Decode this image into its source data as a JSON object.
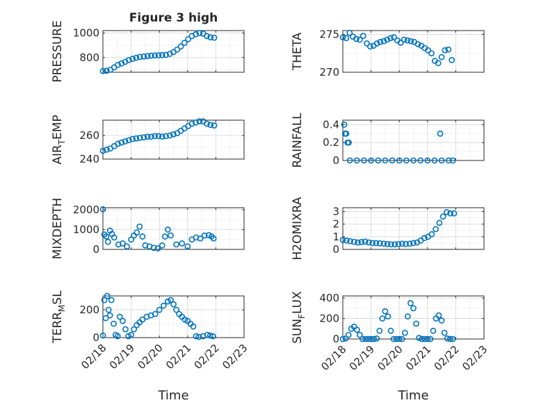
{
  "colors": {
    "marker": "#0072BD",
    "axis": "#262626",
    "grid": "#dcdcdc",
    "background": "#ffffff"
  },
  "chart_data": [
    {
      "id": "pressure",
      "type": "scatter",
      "title": "Figure 3 high",
      "xlabel": "",
      "ylabel": "PRESSURE",
      "xlim": [
        "02/18",
        "02/23"
      ],
      "ylim": [
        680,
        1020
      ],
      "yticks": [
        800,
        1000
      ],
      "ytick_labels": [
        "800",
        "1000"
      ],
      "xtick_labels": [],
      "grid": true,
      "x": [
        0.0,
        0.13,
        0.26,
        0.4,
        0.53,
        0.66,
        0.79,
        0.92,
        1.05,
        1.18,
        1.31,
        1.45,
        1.58,
        1.71,
        1.84,
        1.97,
        2.1,
        2.23,
        2.37,
        2.5,
        2.63,
        2.76,
        2.89,
        3.02,
        3.15,
        3.29,
        3.42,
        3.55,
        3.68,
        3.81,
        3.94
      ],
      "y": [
        690,
        692,
        700,
        720,
        740,
        752,
        765,
        780,
        790,
        798,
        805,
        808,
        812,
        815,
        817,
        818,
        820,
        822,
        830,
        845,
        865,
        890,
        920,
        950,
        975,
        990,
        1000,
        995,
        975,
        965,
        962
      ]
    },
    {
      "id": "theta",
      "type": "scatter",
      "title": "",
      "xlabel": "",
      "ylabel": "THETA",
      "xlim": [
        "02/18",
        "02/23"
      ],
      "ylim": [
        270,
        275.5
      ],
      "yticks": [
        270,
        275
      ],
      "ytick_labels": [
        "270",
        "275"
      ],
      "xtick_labels": [],
      "grid": true,
      "x": [
        0.0,
        0.12,
        0.24,
        0.36,
        0.48,
        0.6,
        0.72,
        0.85,
        0.97,
        1.09,
        1.21,
        1.33,
        1.45,
        1.57,
        1.69,
        1.81,
        1.93,
        2.05,
        2.17,
        2.29,
        2.41,
        2.53,
        2.66,
        2.78,
        2.9,
        3.02,
        3.14,
        3.26,
        3.38,
        3.5,
        3.62,
        3.74,
        3.86
      ],
      "y": [
        274.6,
        274.5,
        275.2,
        274.7,
        274.4,
        274.3,
        274.8,
        273.8,
        273.4,
        273.5,
        273.8,
        274.0,
        274.1,
        274.3,
        274.5,
        274.6,
        274.2,
        273.9,
        274.3,
        274.2,
        274.1,
        274.0,
        273.7,
        273.5,
        273.2,
        272.9,
        272.5,
        271.5,
        271.2,
        272.0,
        272.9,
        273.0,
        271.6
      ]
    },
    {
      "id": "air_temp",
      "type": "scatter",
      "title": "",
      "xlabel": "",
      "ylabel": "AIR_TEMP",
      "xlim": [
        "02/18",
        "02/23"
      ],
      "ylim": [
        240,
        273
      ],
      "yticks": [
        240,
        260
      ],
      "ytick_labels": [
        "240",
        "260"
      ],
      "xtick_labels": [],
      "grid": true,
      "x": [
        0.0,
        0.13,
        0.26,
        0.4,
        0.53,
        0.66,
        0.79,
        0.92,
        1.05,
        1.18,
        1.31,
        1.45,
        1.58,
        1.71,
        1.84,
        1.97,
        2.1,
        2.23,
        2.37,
        2.5,
        2.63,
        2.76,
        2.89,
        3.02,
        3.15,
        3.29,
        3.42,
        3.55,
        3.68,
        3.81,
        3.94
      ],
      "y": [
        247,
        248,
        249,
        251,
        253,
        254,
        255,
        256,
        257,
        257.5,
        258,
        258.5,
        259,
        259,
        259.5,
        259.5,
        259,
        259.5,
        260,
        261,
        262,
        264,
        266,
        268,
        270,
        271,
        272,
        272,
        270,
        269,
        268.5
      ]
    },
    {
      "id": "rainfall",
      "type": "scatter",
      "title": "",
      "xlabel": "",
      "ylabel": "RAINFALL",
      "xlim": [
        "02/18",
        "02/23"
      ],
      "ylim": [
        0,
        0.45
      ],
      "yticks": [
        0,
        0.2,
        0.4
      ],
      "ytick_labels": [
        "0",
        "0.2",
        "0.4"
      ],
      "xtick_labels": [],
      "grid": true,
      "x": [
        0.05,
        0.08,
        0.12,
        0.17,
        0.21,
        3.45,
        0.25,
        0.5,
        0.75,
        1.0,
        1.25,
        1.5,
        1.75,
        2.0,
        2.25,
        2.5,
        2.75,
        3.0,
        3.25,
        3.5,
        3.75,
        3.9
      ],
      "y": [
        0.4,
        0.3,
        0.3,
        0.2,
        0.2,
        0.3,
        0,
        0,
        0,
        0,
        0,
        0,
        0,
        0,
        0,
        0,
        0,
        0,
        0,
        0,
        0,
        0
      ]
    },
    {
      "id": "mixdepth",
      "type": "scatter",
      "title": "",
      "xlabel": "",
      "ylabel": "MIXDEPTH",
      "xlim": [
        "02/18",
        "02/23"
      ],
      "ylim": [
        0,
        2100
      ],
      "yticks": [
        0,
        1000,
        2000
      ],
      "ytick_labels": [
        "0",
        "1000",
        "2000"
      ],
      "xtick_labels": [],
      "grid": true,
      "x": [
        0.0,
        0.05,
        0.12,
        0.18,
        0.25,
        0.32,
        0.4,
        0.55,
        0.7,
        0.85,
        1.0,
        1.1,
        1.2,
        1.3,
        1.4,
        1.5,
        1.65,
        1.8,
        1.95,
        2.1,
        2.2,
        2.3,
        2.4,
        2.6,
        2.8,
        3.0,
        3.15,
        3.3,
        3.45,
        3.6,
        3.75,
        3.85,
        3.92
      ],
      "y": [
        2020,
        750,
        650,
        380,
        950,
        780,
        600,
        250,
        300,
        150,
        500,
        700,
        850,
        1150,
        650,
        200,
        150,
        80,
        50,
        200,
        650,
        1000,
        700,
        250,
        300,
        150,
        500,
        600,
        550,
        700,
        720,
        650,
        550
      ]
    },
    {
      "id": "h2omixra",
      "type": "scatter",
      "title": "",
      "xlabel": "",
      "ylabel": "H2OMIXRA",
      "xlim": [
        "02/18",
        "02/23"
      ],
      "ylim": [
        0,
        3.3
      ],
      "yticks": [
        0,
        1,
        2,
        3
      ],
      "ytick_labels": [
        "0",
        "1",
        "2",
        "3"
      ],
      "xtick_labels": [],
      "grid": true,
      "x": [
        0.0,
        0.13,
        0.26,
        0.4,
        0.53,
        0.66,
        0.79,
        0.92,
        1.05,
        1.18,
        1.31,
        1.45,
        1.58,
        1.71,
        1.84,
        1.97,
        2.1,
        2.23,
        2.37,
        2.5,
        2.63,
        2.76,
        2.89,
        3.02,
        3.15,
        3.29,
        3.42,
        3.55,
        3.68,
        3.81,
        3.94
      ],
      "y": [
        0.75,
        0.7,
        0.65,
        0.6,
        0.55,
        0.58,
        0.62,
        0.55,
        0.5,
        0.5,
        0.48,
        0.45,
        0.42,
        0.4,
        0.4,
        0.42,
        0.45,
        0.43,
        0.45,
        0.5,
        0.55,
        0.7,
        0.9,
        1.0,
        1.2,
        1.6,
        2.1,
        2.6,
        2.95,
        2.85,
        2.85
      ]
    },
    {
      "id": "terr_msl",
      "type": "scatter",
      "title": "",
      "xlabel": "Time",
      "ylabel": "TERR_MSL",
      "xlim": [
        "02/18",
        "02/23"
      ],
      "ylim": [
        0,
        300
      ],
      "yticks": [
        0,
        200
      ],
      "ytick_labels": [
        "0",
        "200"
      ],
      "xtick_labels": [
        "02/18",
        "02/19",
        "02/20",
        "02/21",
        "02/22",
        "02/23"
      ],
      "grid": true,
      "x": [
        0.0,
        0.05,
        0.1,
        0.15,
        0.2,
        0.25,
        0.3,
        0.38,
        0.45,
        0.52,
        0.6,
        0.7,
        0.8,
        0.9,
        1.0,
        1.1,
        1.2,
        1.3,
        1.4,
        1.55,
        1.7,
        1.85,
        2.0,
        2.15,
        2.3,
        2.4,
        2.5,
        2.6,
        2.7,
        2.8,
        2.9,
        3.0,
        3.1,
        3.2,
        3.3,
        3.4,
        3.55,
        3.7,
        3.8,
        3.9
      ],
      "y": [
        15,
        270,
        140,
        300,
        200,
        160,
        270,
        100,
        20,
        10,
        150,
        120,
        60,
        10,
        20,
        60,
        90,
        110,
        130,
        150,
        160,
        170,
        200,
        230,
        260,
        270,
        240,
        200,
        170,
        150,
        130,
        120,
        100,
        80,
        10,
        5,
        10,
        20,
        15,
        10
      ]
    },
    {
      "id": "sun_flux",
      "type": "scatter",
      "title": "",
      "xlabel": "Time",
      "ylabel": "SUN_FLUX",
      "xlim": [
        "02/18",
        "02/23"
      ],
      "ylim": [
        0,
        420
      ],
      "yticks": [
        0,
        200,
        400
      ],
      "ytick_labels": [
        "0",
        "200",
        "400"
      ],
      "xtick_labels": [
        "02/18",
        "02/19",
        "02/20",
        "02/21",
        "02/22",
        "02/23"
      ],
      "grid": true,
      "x": [
        0.0,
        0.1,
        0.2,
        0.3,
        0.4,
        0.5,
        0.6,
        0.7,
        0.8,
        0.9,
        1.0,
        1.1,
        1.2,
        1.3,
        1.4,
        1.5,
        1.6,
        1.7,
        1.8,
        1.9,
        2.0,
        2.1,
        2.2,
        2.3,
        2.4,
        2.5,
        2.6,
        2.7,
        2.8,
        2.9,
        3.0,
        3.1,
        3.2,
        3.3,
        3.4,
        3.5,
        3.6,
        3.7,
        3.8,
        3.9
      ],
      "y": [
        0,
        5,
        40,
        100,
        120,
        90,
        40,
        0,
        0,
        0,
        0,
        0,
        5,
        80,
        200,
        270,
        220,
        80,
        0,
        0,
        0,
        0,
        60,
        220,
        350,
        300,
        150,
        10,
        0,
        0,
        0,
        0,
        80,
        200,
        230,
        180,
        60,
        5,
        0,
        0
      ]
    }
  ]
}
